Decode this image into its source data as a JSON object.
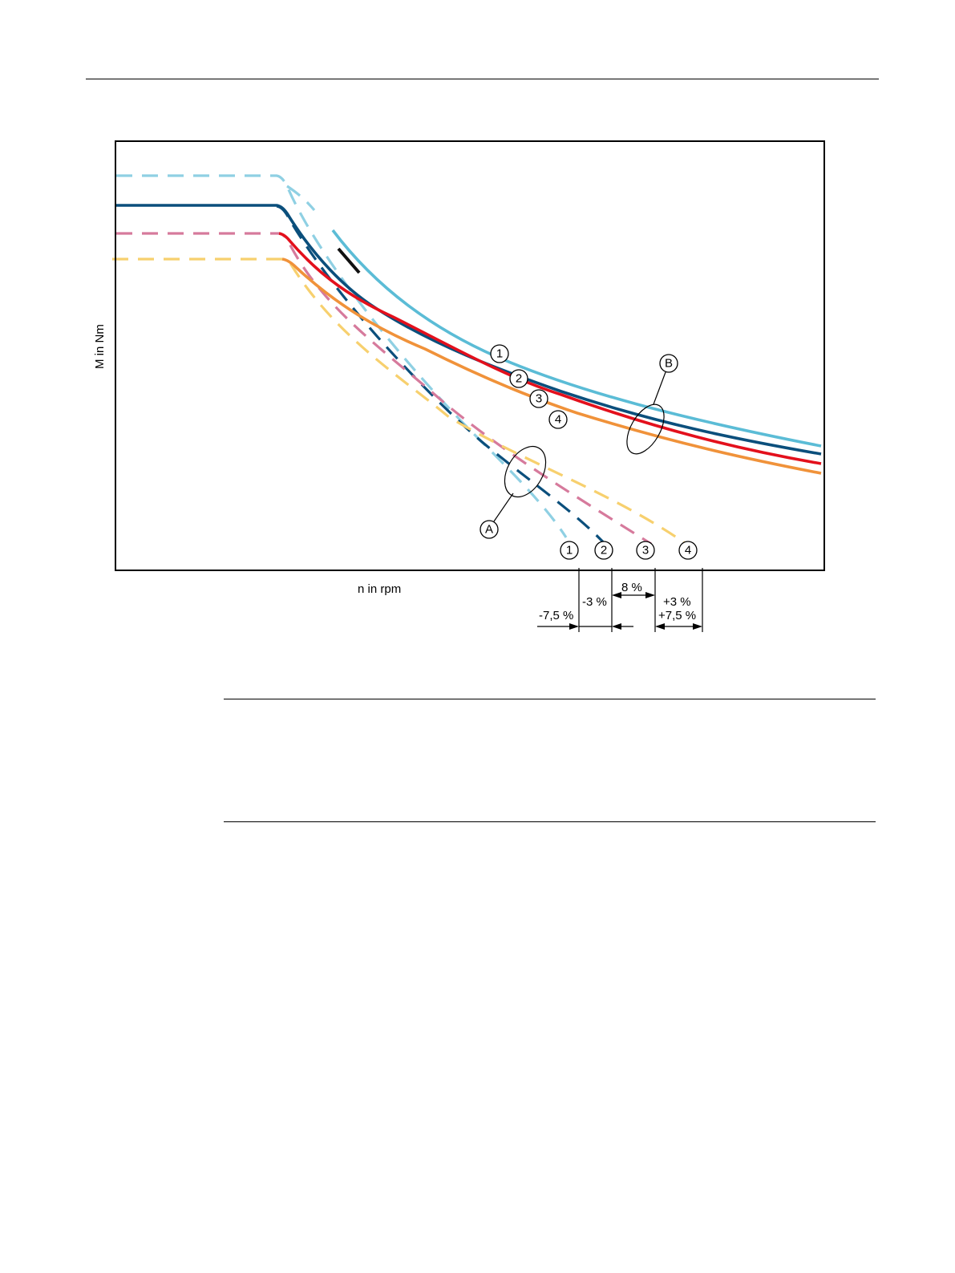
{
  "chart_data": {
    "type": "line",
    "xlabel": "n in rpm",
    "ylabel": "M in Nm",
    "grid": false,
    "colors": {
      "1": "#5bbcd6",
      "2": "#0b4f7c",
      "3": "#e3101c",
      "4": "#f0923a",
      "1_dashed": "#8fd0e3",
      "2_dashed": "#0b4f7c",
      "3_dashed": "#d67a9c",
      "4_dashed": "#f7d06e"
    },
    "curve_labels": [
      "1",
      "2",
      "3",
      "4"
    ],
    "group_labels": {
      "dashed": "A",
      "solid": "B"
    },
    "deviation_labels": [
      "-7,5 %",
      "-3 %",
      "8 %",
      "+3 %",
      "+7,5 %"
    ]
  }
}
